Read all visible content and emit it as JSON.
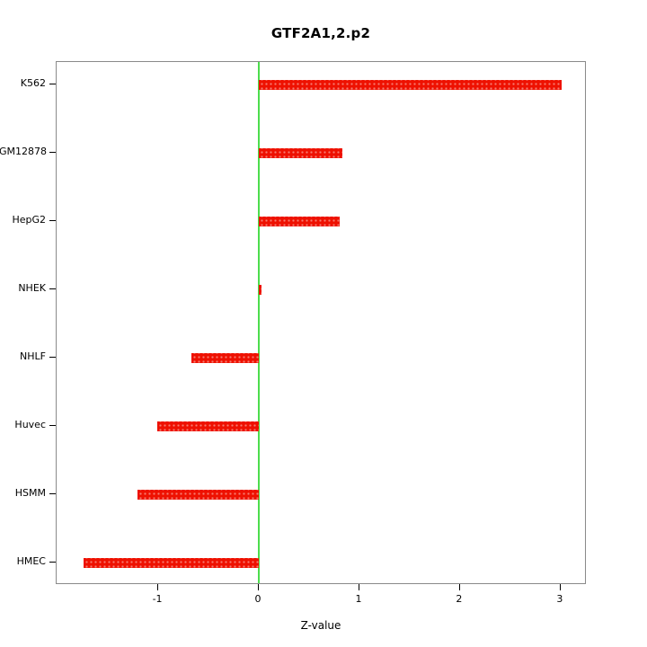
{
  "chart_data": {
    "type": "bar",
    "orientation": "horizontal",
    "title": "GTF2A1,2.p2",
    "xlabel": "Z-value",
    "categories": [
      "K562",
      "GM12878",
      "HepG2",
      "NHEK",
      "NHLF",
      "Huvec",
      "HSMM",
      "HMEC"
    ],
    "values": [
      3.01,
      0.83,
      0.8,
      0.03,
      -0.67,
      -1.01,
      -1.21,
      -1.74
    ],
    "xlim": [
      -2.01,
      3.26
    ],
    "xticks": [
      -1,
      0,
      1,
      2,
      3
    ],
    "grid": false,
    "legend": "none",
    "bar_color": "#ee1100",
    "zero_line_color": "#4ddd4d",
    "frame_color": "#8a8a8a"
  }
}
